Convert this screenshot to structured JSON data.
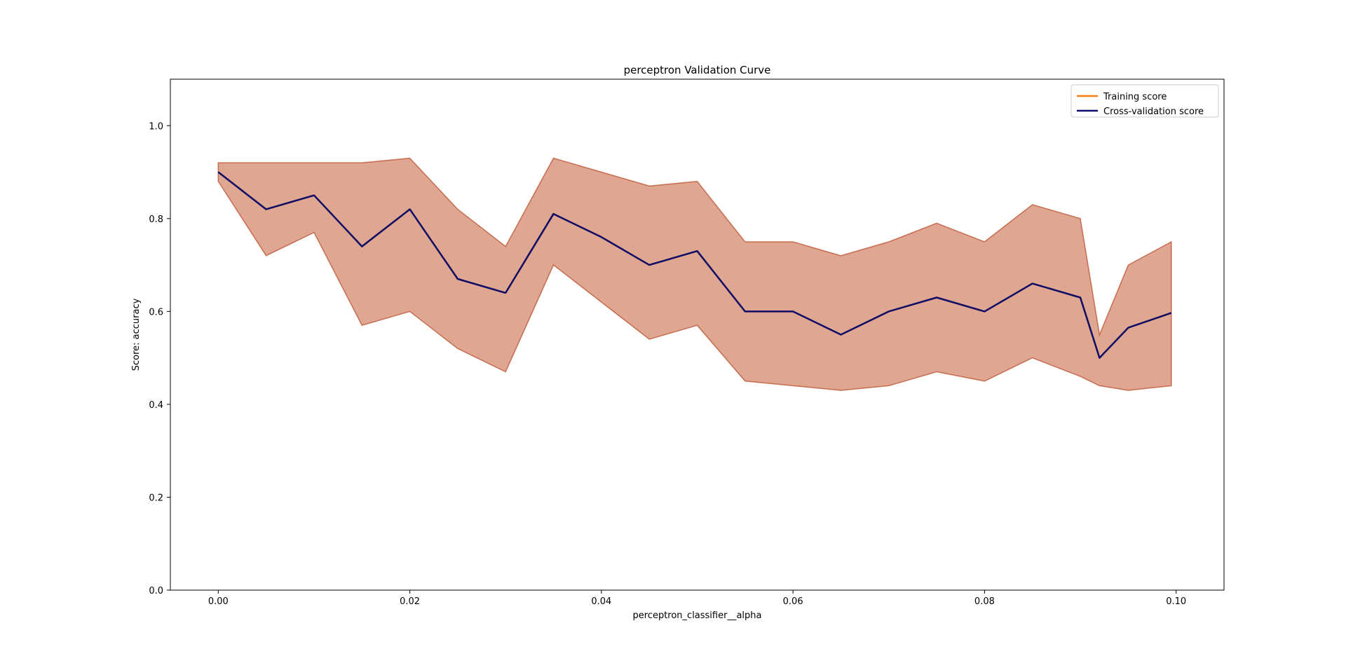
{
  "chart_data": {
    "type": "line",
    "title": "perceptron Validation Curve",
    "xlabel": "perceptron_classifier__alpha",
    "ylabel": "Score: accuracy",
    "xlim": [
      -0.005,
      0.105
    ],
    "ylim": [
      0.0,
      1.1
    ],
    "xticks": [
      0.0,
      0.02,
      0.04,
      0.06,
      0.08,
      0.1
    ],
    "xtick_labels": [
      "0.00",
      "0.02",
      "0.04",
      "0.06",
      "0.08",
      "0.10"
    ],
    "yticks": [
      0.0,
      0.2,
      0.4,
      0.6,
      0.8,
      1.0
    ],
    "ytick_labels": [
      "0.0",
      "0.2",
      "0.4",
      "0.6",
      "0.8",
      "1.0"
    ],
    "grid": false,
    "legend": "upper right",
    "x": [
      0.0,
      0.005,
      0.01,
      0.015,
      0.02,
      0.025,
      0.03,
      0.035,
      0.04,
      0.045,
      0.05,
      0.055,
      0.06,
      0.065,
      0.07,
      0.075,
      0.08,
      0.085,
      0.09,
      0.092,
      0.095,
      0.0995
    ],
    "series": [
      {
        "name": "Training score",
        "color": "#ff7f0e",
        "mean": [
          0.9,
          0.82,
          0.85,
          0.74,
          0.82,
          0.67,
          0.64,
          0.81,
          0.76,
          0.7,
          0.73,
          0.6,
          0.6,
          0.55,
          0.6,
          0.63,
          0.6,
          0.66,
          0.63,
          0.5,
          0.565,
          0.597
        ],
        "upper": [
          0.92,
          0.92,
          0.92,
          0.92,
          0.93,
          0.82,
          0.74,
          0.93,
          0.9,
          0.87,
          0.88,
          0.75,
          0.75,
          0.72,
          0.75,
          0.79,
          0.75,
          0.83,
          0.8,
          0.55,
          0.7,
          0.75
        ],
        "lower": [
          0.88,
          0.72,
          0.77,
          0.57,
          0.6,
          0.52,
          0.47,
          0.7,
          0.62,
          0.54,
          0.57,
          0.45,
          0.44,
          0.43,
          0.44,
          0.47,
          0.45,
          0.5,
          0.46,
          0.44,
          0.43,
          0.44
        ]
      },
      {
        "name": "Cross-validation score",
        "color": "#0c0c6b",
        "mean": [
          0.9,
          0.82,
          0.85,
          0.74,
          0.82,
          0.67,
          0.64,
          0.81,
          0.76,
          0.7,
          0.73,
          0.6,
          0.6,
          0.55,
          0.6,
          0.63,
          0.6,
          0.66,
          0.63,
          0.5,
          0.565,
          0.597
        ],
        "upper": [
          0.92,
          0.92,
          0.92,
          0.92,
          0.93,
          0.82,
          0.74,
          0.93,
          0.9,
          0.87,
          0.88,
          0.75,
          0.75,
          0.72,
          0.75,
          0.79,
          0.75,
          0.83,
          0.8,
          0.55,
          0.7,
          0.75
        ],
        "lower": [
          0.88,
          0.72,
          0.77,
          0.57,
          0.6,
          0.52,
          0.47,
          0.7,
          0.62,
          0.54,
          0.57,
          0.45,
          0.44,
          0.43,
          0.44,
          0.47,
          0.45,
          0.5,
          0.46,
          0.44,
          0.43,
          0.44
        ]
      }
    ]
  }
}
